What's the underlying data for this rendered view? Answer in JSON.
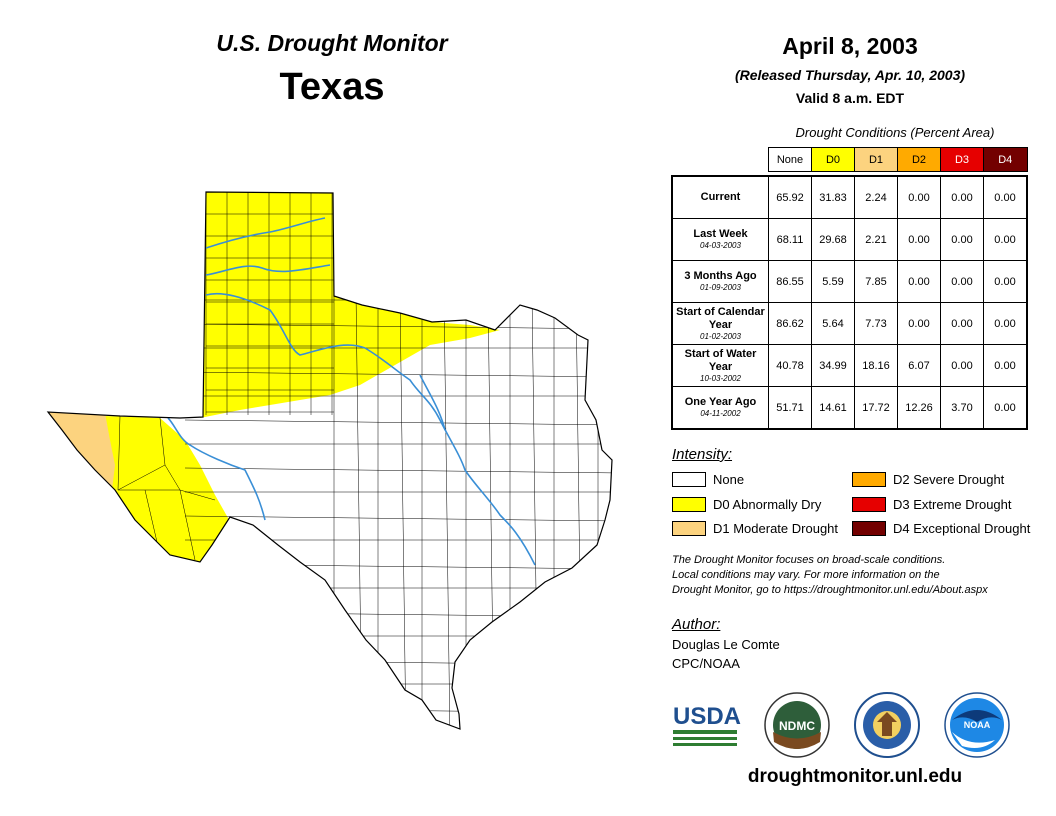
{
  "header": {
    "title": "U.S. Drought Monitor",
    "state": "Texas",
    "date": "April 8, 2003",
    "released": "(Released Thursday, Apr. 10, 2003)",
    "valid": "Valid 8 a.m. EDT"
  },
  "table": {
    "title": "Drought Conditions (Percent Area)",
    "columns": [
      "None",
      "D0",
      "D1",
      "D2",
      "D3",
      "D4"
    ],
    "rows": [
      {
        "label": "Current",
        "sub": "",
        "values": [
          "65.92",
          "31.83",
          "2.24",
          "0.00",
          "0.00",
          "0.00"
        ]
      },
      {
        "label": "Last Week",
        "sub": "04-03-2003",
        "values": [
          "68.11",
          "29.68",
          "2.21",
          "0.00",
          "0.00",
          "0.00"
        ]
      },
      {
        "label": "3 Months Ago",
        "sub": "01-09-2003",
        "values": [
          "86.55",
          "5.59",
          "7.85",
          "0.00",
          "0.00",
          "0.00"
        ]
      },
      {
        "label": "Start of Calendar Year",
        "sub": "01-02-2003",
        "values": [
          "86.62",
          "5.64",
          "7.73",
          "0.00",
          "0.00",
          "0.00"
        ]
      },
      {
        "label": "Start of Water Year",
        "sub": "10-03-2002",
        "values": [
          "40.78",
          "34.99",
          "18.16",
          "6.07",
          "0.00",
          "0.00"
        ]
      },
      {
        "label": "One Year Ago",
        "sub": "04-11-2002",
        "values": [
          "51.71",
          "14.61",
          "17.72",
          "12.26",
          "3.70",
          "0.00"
        ]
      }
    ]
  },
  "legend": {
    "title": "Intensity:",
    "items": [
      {
        "label": "None",
        "color": "#ffffff"
      },
      {
        "label": "D0 Abnormally Dry",
        "color": "#ffff00"
      },
      {
        "label": "D1 Moderate Drought",
        "color": "#fcd37f"
      },
      {
        "label": "D2 Severe Drought",
        "color": "#ffaa00"
      },
      {
        "label": "D3 Extreme Drought",
        "color": "#e60000"
      },
      {
        "label": "D4 Exceptional Drought",
        "color": "#730000"
      }
    ]
  },
  "note": {
    "line1": "The Drought Monitor focuses on broad-scale conditions.",
    "line2": "Local conditions may vary. For more information on the",
    "line3": "Drought Monitor, go to https://droughtmonitor.unl.edu/About.aspx"
  },
  "author": {
    "label": "Author:",
    "name": "Douglas Le Comte",
    "org": "CPC/NOAA"
  },
  "logos": {
    "usda": "USDA",
    "ndmc": "NDMC",
    "noaa": "NOAA"
  },
  "footer": {
    "url": "droughtmonitor.unl.edu"
  },
  "colors": {
    "d0": "#ffff00",
    "d1": "#fcd37f",
    "river": "#3a8fd6"
  }
}
